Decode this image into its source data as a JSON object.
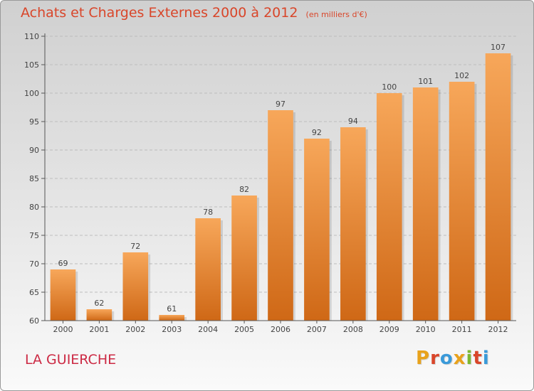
{
  "header": {
    "title": "Achats et Charges Externes 2000 à 2012",
    "unit": "(en milliers d'€)"
  },
  "footer": {
    "commune": "LA GUIERCHE",
    "brand": "Proxiti",
    "brand_colors": [
      "#e8a21c",
      "#d9462a",
      "#3a9ad9",
      "#e8a21c",
      "#7cb832",
      "#d9462a",
      "#3a9ad9"
    ]
  },
  "colors": {
    "bar_top": "#f7a75a",
    "bar_bottom": "#cf6816",
    "text": "#444444",
    "accent": "#d9462a"
  },
  "chart_data": {
    "type": "bar",
    "title": "Achats et Charges Externes 2000 à 2012",
    "subtitle": "(en milliers d'€)",
    "categories": [
      "2000",
      "2001",
      "2002",
      "2003",
      "2004",
      "2005",
      "2006",
      "2007",
      "2008",
      "2009",
      "2010",
      "2011",
      "2012"
    ],
    "values": [
      69,
      62,
      72,
      61,
      78,
      82,
      97,
      92,
      94,
      100,
      101,
      102,
      107
    ],
    "ylim": [
      60,
      110
    ],
    "yticks": [
      60,
      65,
      70,
      75,
      80,
      85,
      90,
      95,
      100,
      105,
      110
    ],
    "grid": true,
    "legend": "none"
  }
}
